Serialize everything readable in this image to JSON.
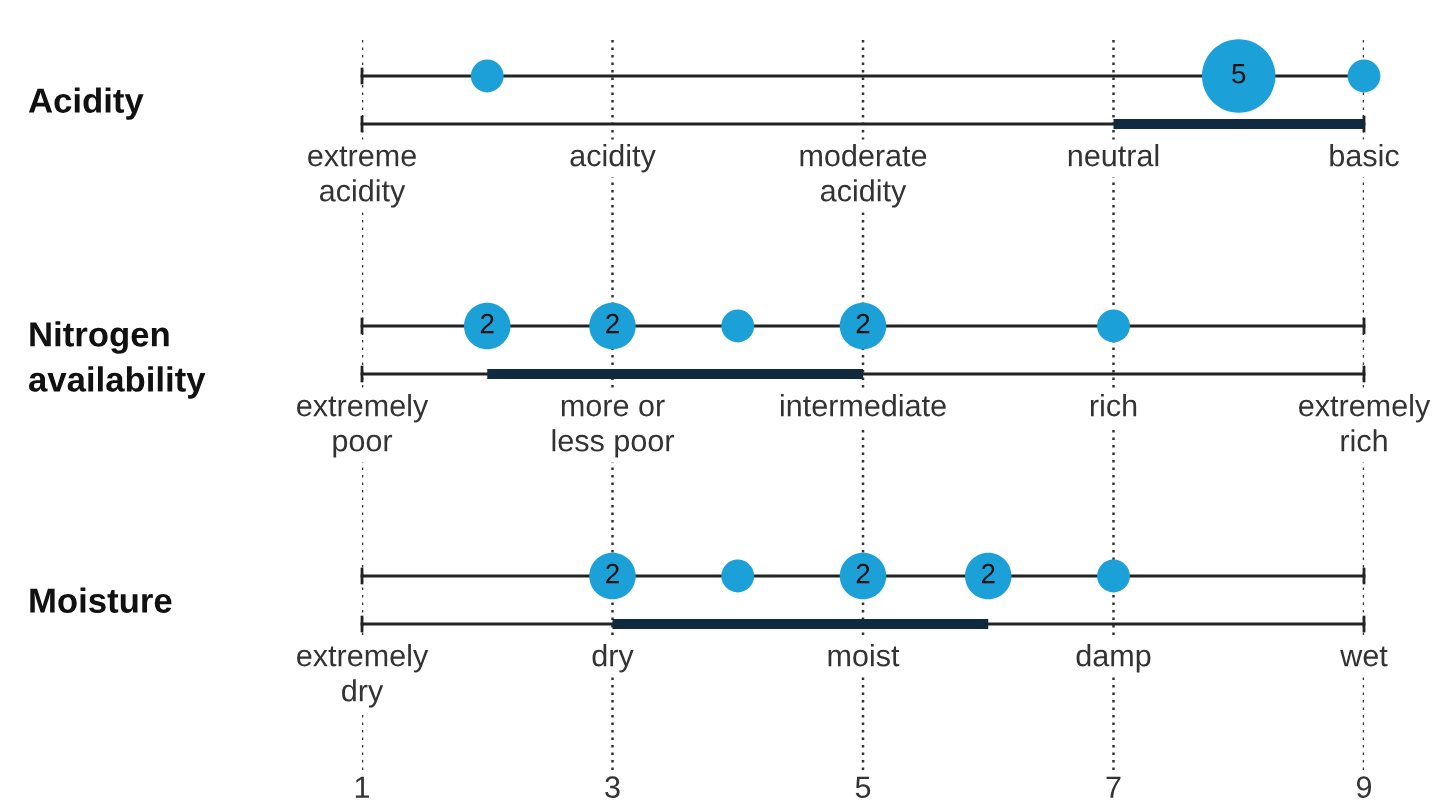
{
  "chart_data": {
    "type": "bubble",
    "orientation": "horizontal",
    "categories": [
      "Acidity",
      "Nitrogen\navailability",
      "Moisture"
    ],
    "xlim": [
      1,
      9
    ],
    "xticks": [
      1,
      3,
      5,
      7,
      9
    ],
    "grid": "x",
    "series": [
      {
        "x": [
          "Acidity",
          "Acidity",
          "Acidity",
          "Nitrogen\navailability",
          "Nitrogen\navailability",
          "Nitrogen\navailability",
          "Nitrogen\navailability",
          "Nitrogen\navailability",
          "Moisture",
          "Moisture",
          "Moisture",
          "Moisture",
          "Moisture"
        ],
        "values": [
          2,
          8,
          9,
          2,
          3,
          4,
          5,
          7,
          3,
          4,
          5,
          6,
          7
        ],
        "sizes": [
          0.2,
          1,
          0.2,
          0.4,
          0.4,
          0.2,
          0.4,
          0.2,
          0.4,
          0.2,
          0.4,
          0.4,
          0.2
        ],
        "color": "#1ba1d8"
      },
      {
        "type": "bar",
        "base": [
          7,
          2,
          3
        ],
        "values": [
          2,
          3,
          3
        ],
        "color": "#102a3f"
      }
    ],
    "annotations": [
      {
        "text": "5",
        "x": 8,
        "y": "Acidity"
      },
      {
        "text": "2",
        "x": 2,
        "y": "Nitrogen\navailability"
      },
      {
        "text": "2",
        "x": 3,
        "y": "Nitrogen\navailability"
      },
      {
        "text": "2",
        "x": 5,
        "y": "Nitrogen\navailability"
      },
      {
        "text": "2",
        "x": 3,
        "y": "Moisture"
      },
      {
        "text": "2",
        "x": 5,
        "y": "Moisture"
      },
      {
        "text": "2",
        "x": 6,
        "y": "Moisture"
      },
      "extreme\nacidity",
      "acidity",
      "moderate\nacidity",
      "neutral",
      "basic",
      "extremely\npoor",
      "more or\nless poor",
      "intermediate",
      "rich",
      "extremely\nrich",
      "extremely\ndry",
      "dry",
      "moist",
      "damp",
      "wet"
    ]
  }
}
